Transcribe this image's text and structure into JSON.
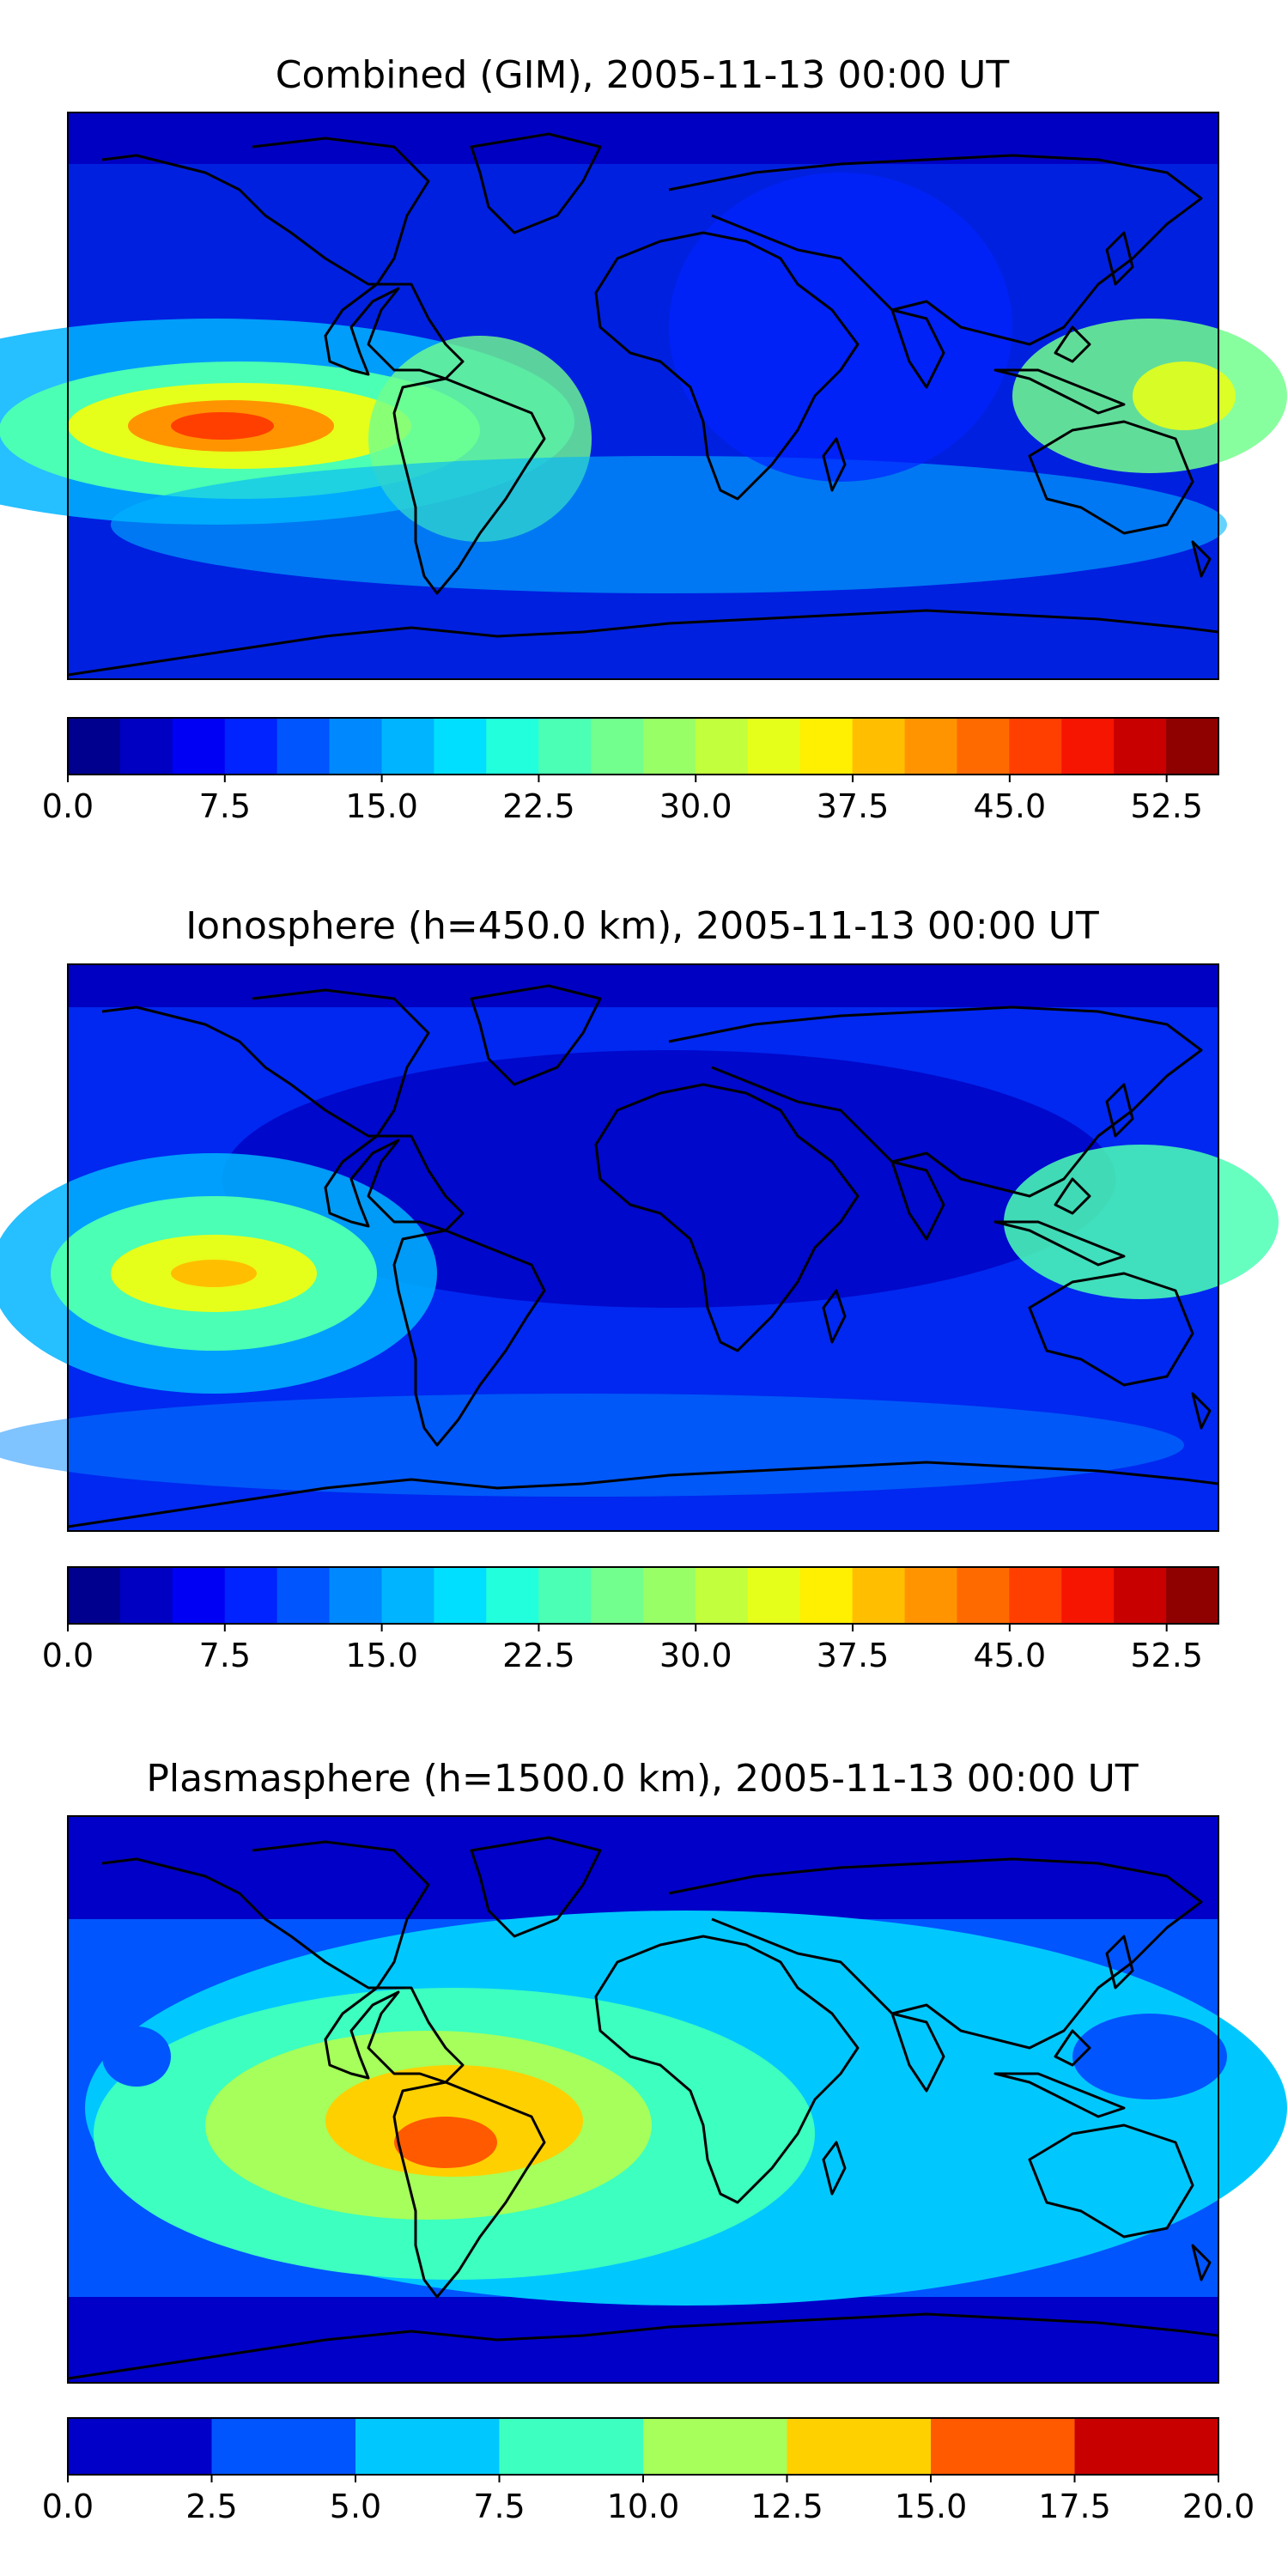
{
  "panels": [
    {
      "title": "Combined (GIM), 2005-11-13 00:00 UT",
      "map": "TEC map",
      "colorbar": {
        "colors": [
          "#00008f",
          "#0000c2",
          "#0000f5",
          "#0023ff",
          "#0055ff",
          "#0088ff",
          "#00b4ff",
          "#00dfff",
          "#22ffdd",
          "#4bffb4",
          "#72ff8d",
          "#99ff66",
          "#c2ff3d",
          "#e6ff1a",
          "#ffef00",
          "#ffbf00",
          "#ff9400",
          "#ff6a00",
          "#ff3f00",
          "#f51500",
          "#c80000",
          "#8f0000"
        ],
        "boundaries": [
          0,
          54.975
        ],
        "ticks": [
          "0.0",
          "7.5",
          "15.0",
          "22.5",
          "30.0",
          "37.5",
          "45.0",
          "52.5"
        ],
        "tick_values": [
          0,
          7.5,
          15,
          22.5,
          30,
          37.5,
          45,
          52.5
        ]
      }
    },
    {
      "title": "Ionosphere  (h=450.0 km), 2005-11-13 00:00 UT",
      "map": "TEC map",
      "colorbar": {
        "colors": [
          "#00008f",
          "#0000c2",
          "#0000f5",
          "#0023ff",
          "#0055ff",
          "#0088ff",
          "#00b4ff",
          "#00dfff",
          "#22ffdd",
          "#4bffb4",
          "#72ff8d",
          "#99ff66",
          "#c2ff3d",
          "#e6ff1a",
          "#ffef00",
          "#ffbf00",
          "#ff9400",
          "#ff6a00",
          "#ff3f00",
          "#f51500",
          "#c80000",
          "#8f0000"
        ],
        "boundaries": [
          0,
          54.975
        ],
        "ticks": [
          "0.0",
          "7.5",
          "15.0",
          "22.5",
          "30.0",
          "37.5",
          "45.0",
          "52.5"
        ],
        "tick_values": [
          0,
          7.5,
          15,
          22.5,
          30,
          37.5,
          45,
          52.5
        ]
      }
    },
    {
      "title": "Plasmasphere (h=1500.0 km), 2005-11-13 00:00 UT",
      "map": "TEC map",
      "colorbar": {
        "colors": [
          "#0000c8",
          "#0055ff",
          "#00c8ff",
          "#3cffc0",
          "#a6ff5a",
          "#ffd000",
          "#ff5a00",
          "#c80000"
        ],
        "boundaries": [
          0,
          20
        ],
        "ticks": [
          "0.0",
          "2.5",
          "5.0",
          "7.5",
          "10.0",
          "12.5",
          "15.0",
          "17.5",
          "20.0"
        ],
        "tick_values": [
          0,
          2.5,
          5,
          7.5,
          10,
          12.5,
          15,
          17.5,
          20
        ]
      }
    }
  ]
}
